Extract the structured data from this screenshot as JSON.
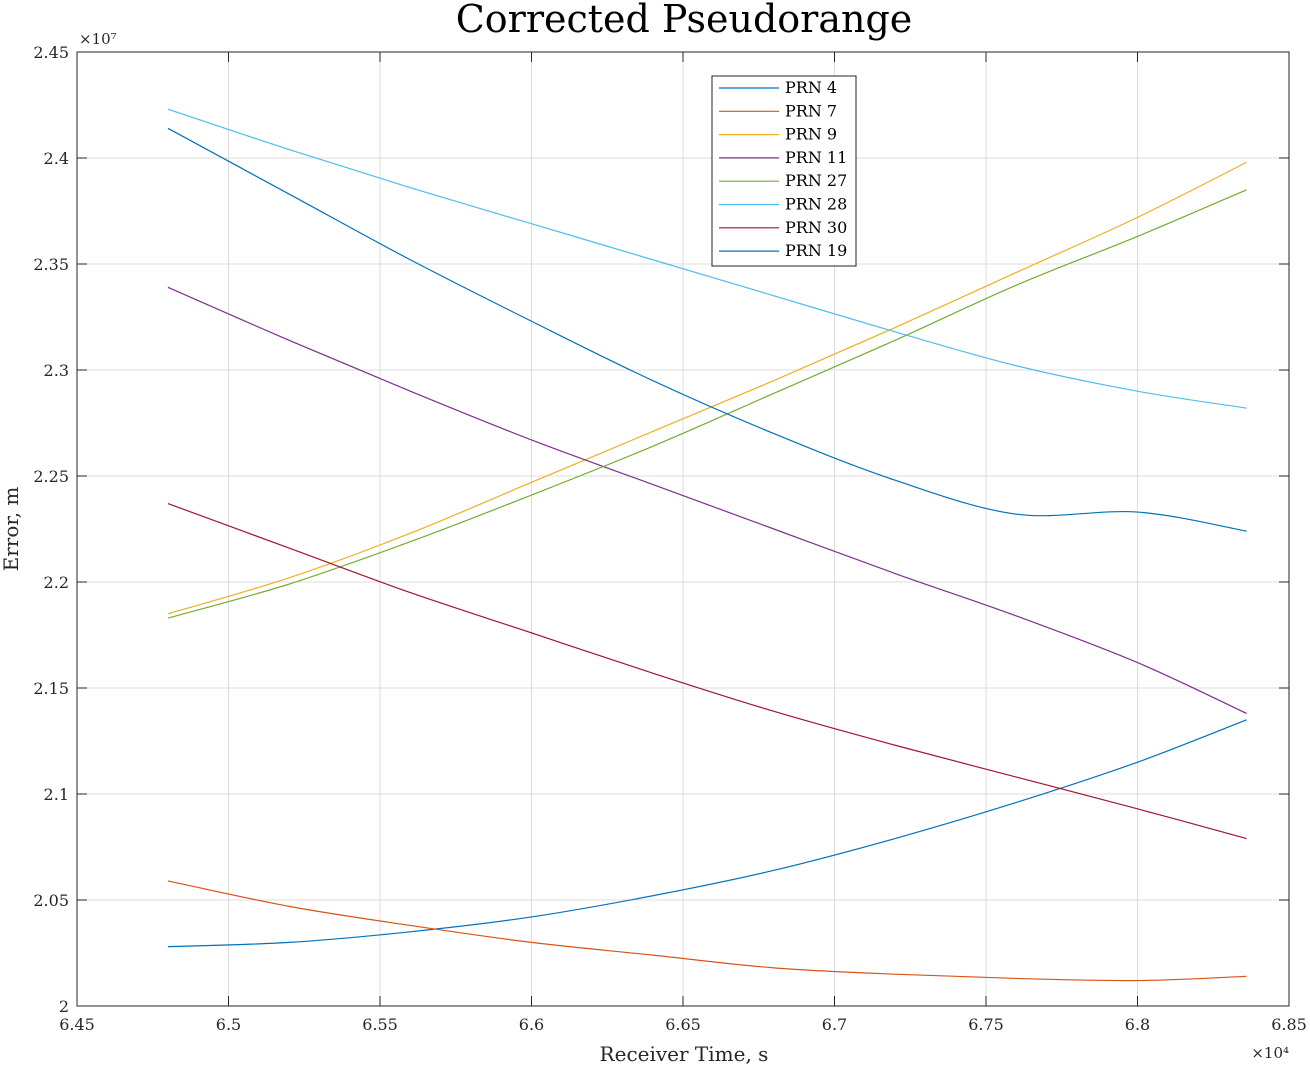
{
  "chart_data": {
    "type": "line",
    "title": "Corrected Pseudorange",
    "xlabel": "Receiver Time, s",
    "ylabel": "Error, m",
    "x_exponent_label": "×10⁴",
    "y_exponent_label": "×10⁷",
    "xlim": [
      64500,
      68500
    ],
    "ylim": [
      20000000,
      24500000
    ],
    "x_ticks": [
      64500,
      65000,
      65500,
      66000,
      66500,
      67000,
      67500,
      68000,
      68500
    ],
    "x_tick_labels": [
      "6.45",
      "6.5",
      "6.55",
      "6.6",
      "6.65",
      "6.7",
      "6.75",
      "6.8",
      "6.85"
    ],
    "y_ticks": [
      20000000,
      20500000,
      21000000,
      21500000,
      22000000,
      22500000,
      23000000,
      23500000,
      24000000,
      24500000
    ],
    "y_tick_labels": [
      "2",
      "2.05",
      "2.1",
      "2.15",
      "2.2",
      "2.25",
      "2.3",
      "2.35",
      "2.4",
      "2.45"
    ],
    "grid": true,
    "legend_position": "top-center",
    "x": [
      64800,
      65200,
      65600,
      66000,
      66400,
      66800,
      67200,
      67600,
      68000,
      68360
    ],
    "series": [
      {
        "name": "PRN 4",
        "color": "#0072BD",
        "values": [
          20280000,
          20300000,
          20350000,
          20420000,
          20520000,
          20640000,
          20790000,
          20960000,
          21150000,
          21350000
        ]
      },
      {
        "name": "PRN 7",
        "color": "#D95319",
        "values": [
          20590000,
          20470000,
          20380000,
          20300000,
          20240000,
          20180000,
          20150000,
          20130000,
          20120000,
          20140000
        ]
      },
      {
        "name": "PRN 9",
        "color": "#EDB120",
        "values": [
          21850000,
          22020000,
          22230000,
          22470000,
          22710000,
          22950000,
          23200000,
          23460000,
          23720000,
          23980000
        ]
      },
      {
        "name": "PRN 11",
        "color": "#7E2F8E",
        "values": [
          23390000,
          23140000,
          22900000,
          22670000,
          22460000,
          22250000,
          22040000,
          21840000,
          21620000,
          21380000
        ]
      },
      {
        "name": "PRN 27",
        "color": "#77AC30",
        "values": [
          21830000,
          21990000,
          22190000,
          22410000,
          22640000,
          22890000,
          23140000,
          23400000,
          23630000,
          23850000
        ]
      },
      {
        "name": "PRN 28",
        "color": "#4DBEEE",
        "values": [
          24230000,
          24040000,
          23860000,
          23690000,
          23520000,
          23350000,
          23180000,
          23020000,
          22900000,
          22820000
        ]
      },
      {
        "name": "PRN 30",
        "color": "#A2142F",
        "values": [
          22370000,
          22160000,
          21950000,
          21760000,
          21570000,
          21390000,
          21230000,
          21080000,
          20930000,
          20790000
        ]
      },
      {
        "name": "PRN 19",
        "color": "#0072BD",
        "values": [
          24140000,
          23830000,
          23520000,
          23230000,
          22950000,
          22700000,
          22480000,
          22320000,
          22330000,
          22240000
        ]
      }
    ]
  }
}
